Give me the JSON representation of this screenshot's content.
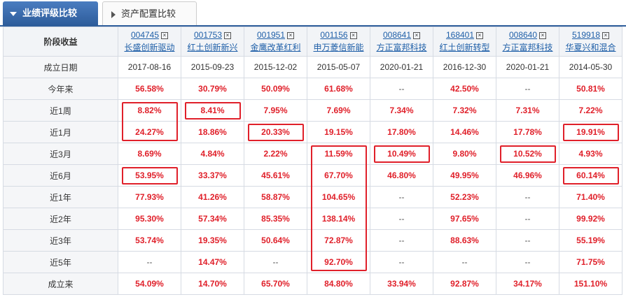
{
  "tabs": [
    {
      "label": "业绩评级比较",
      "active": true
    },
    {
      "label": "资产配置比较",
      "active": false
    }
  ],
  "corner_label": "阶段收益",
  "close_glyph": "⊠",
  "funds": [
    {
      "code": "004745",
      "name": "长盛创新驱动"
    },
    {
      "code": "001753",
      "name": "红土创新新兴"
    },
    {
      "code": "001951",
      "name": "金鹰改革红利"
    },
    {
      "code": "001156",
      "name": "申万菱信新能"
    },
    {
      "code": "008641",
      "name": "方正富邦科技"
    },
    {
      "code": "168401",
      "name": "红土创新转型"
    },
    {
      "code": "008640",
      "name": "方正富邦科技"
    },
    {
      "code": "519918",
      "name": "华夏兴和混合"
    }
  ],
  "rows": [
    {
      "label": "成立日期",
      "values": [
        "2017-08-16",
        "2015-09-23",
        "2015-12-02",
        "2015-05-07",
        "2020-01-21",
        "2016-12-30",
        "2020-01-21",
        "2014-05-30"
      ],
      "kind": "date"
    },
    {
      "label": "今年来",
      "values": [
        "56.58%",
        "30.79%",
        "50.09%",
        "61.68%",
        "--",
        "42.50%",
        "--",
        "50.81%"
      ]
    },
    {
      "label": "近1周",
      "values": [
        "8.82%",
        "8.41%",
        "7.95%",
        "7.69%",
        "7.34%",
        "7.32%",
        "7.31%",
        "7.22%"
      ]
    },
    {
      "label": "近1月",
      "values": [
        "24.27%",
        "18.86%",
        "20.33%",
        "19.15%",
        "17.80%",
        "14.46%",
        "17.78%",
        "19.91%"
      ]
    },
    {
      "label": "近3月",
      "values": [
        "8.69%",
        "4.84%",
        "2.22%",
        "11.59%",
        "10.49%",
        "9.80%",
        "10.52%",
        "4.93%"
      ]
    },
    {
      "label": "近6月",
      "values": [
        "53.95%",
        "33.37%",
        "45.61%",
        "67.70%",
        "46.80%",
        "49.95%",
        "46.96%",
        "60.14%"
      ]
    },
    {
      "label": "近1年",
      "values": [
        "77.93%",
        "41.26%",
        "58.87%",
        "104.65%",
        "--",
        "52.23%",
        "--",
        "71.40%"
      ]
    },
    {
      "label": "近2年",
      "values": [
        "95.30%",
        "57.34%",
        "85.35%",
        "138.14%",
        "--",
        "97.65%",
        "--",
        "99.92%"
      ]
    },
    {
      "label": "近3年",
      "values": [
        "53.74%",
        "19.35%",
        "50.64%",
        "72.87%",
        "--",
        "88.63%",
        "--",
        "55.19%"
      ]
    },
    {
      "label": "近5年",
      "values": [
        "--",
        "14.47%",
        "--",
        "92.70%",
        "--",
        "--",
        "--",
        "71.75%"
      ]
    },
    {
      "label": "成立来",
      "values": [
        "54.09%",
        "14.70%",
        "65.70%",
        "84.80%",
        "33.94%",
        "92.87%",
        "34.17%",
        "151.10%"
      ]
    }
  ],
  "colors": {
    "accent": "#2e5d9b",
    "value_red": "#e0202a",
    "link_blue": "#1f5fa8",
    "highlight_border": "#e0202a"
  }
}
